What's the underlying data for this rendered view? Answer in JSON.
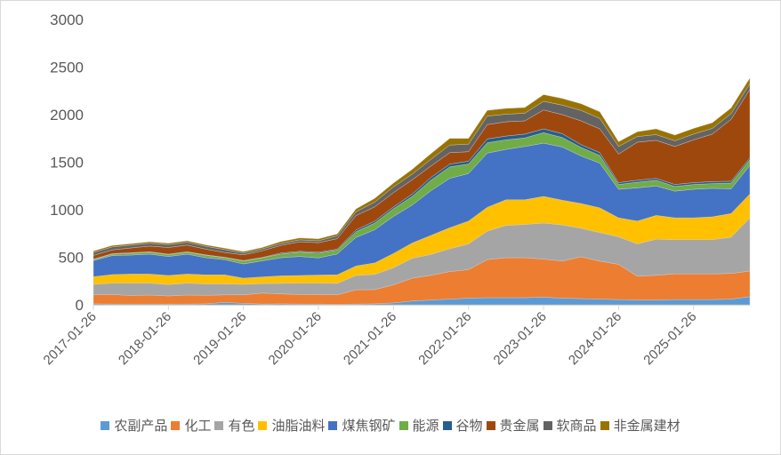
{
  "chart_data": {
    "type": "area",
    "stacked": true,
    "title": "",
    "xlabel": "",
    "ylabel": "",
    "ylim": [
      0,
      3000
    ],
    "yticks": [
      0,
      500,
      1000,
      1500,
      2000,
      2500,
      3000
    ],
    "xtick_labels": [
      "2017-01-26",
      "2018-01-26",
      "2019-01-26",
      "2020-01-26",
      "2021-01-26",
      "2022-01-26",
      "2023-01-26",
      "2024-01-26",
      "2025-01-26"
    ],
    "legend_position": "bottom",
    "grid": false,
    "x": [
      "2017-01",
      "2017-04",
      "2017-07",
      "2017-10",
      "2018-01",
      "2018-04",
      "2018-07",
      "2018-10",
      "2019-01",
      "2019-04",
      "2019-07",
      "2019-10",
      "2020-01",
      "2020-04",
      "2020-07",
      "2020-10",
      "2021-01",
      "2021-04",
      "2021-07",
      "2021-10",
      "2022-01",
      "2022-04",
      "2022-07",
      "2022-10",
      "2023-01",
      "2023-04",
      "2023-07",
      "2023-10",
      "2024-01",
      "2024-04",
      "2024-07",
      "2024-10",
      "2025-01",
      "2025-04",
      "2025-07",
      "2025-10"
    ],
    "series": [
      {
        "name": "农副产品",
        "color": "#5B9BD5",
        "values": [
          10,
          8,
          8,
          8,
          8,
          8,
          10,
          25,
          15,
          8,
          10,
          8,
          8,
          5,
          8,
          10,
          20,
          40,
          50,
          60,
          70,
          75,
          75,
          75,
          80,
          70,
          65,
          60,
          55,
          50,
          50,
          55,
          55,
          55,
          60,
          85
        ]
      },
      {
        "name": "化工",
        "color": "#ED7D31",
        "values": [
          95,
          100,
          90,
          95,
          85,
          95,
          90,
          80,
          90,
          115,
          105,
          100,
          100,
          100,
          150,
          150,
          190,
          240,
          260,
          290,
          300,
          400,
          420,
          420,
          400,
          390,
          440,
          400,
          370,
          250,
          260,
          270,
          270,
          270,
          270,
          270
        ]
      },
      {
        "name": "有色",
        "color": "#A5A5A5",
        "values": [
          110,
          120,
          130,
          125,
          120,
          125,
          120,
          115,
          110,
          100,
          110,
          120,
          120,
          120,
          150,
          160,
          180,
          210,
          220,
          240,
          270,
          300,
          340,
          350,
          380,
          380,
          300,
          300,
          290,
          340,
          380,
          360,
          360,
          360,
          380,
          560
        ]
      },
      {
        "name": "油脂油料",
        "color": "#FFC000",
        "values": [
          80,
          90,
          95,
          95,
          95,
          95,
          95,
          95,
          65,
          70,
          80,
          80,
          85,
          90,
          100,
          120,
          150,
          160,
          200,
          220,
          240,
          250,
          270,
          260,
          280,
          260,
          260,
          260,
          200,
          240,
          250,
          230,
          230,
          240,
          250,
          250
        ]
      },
      {
        "name": "煤焦钢矿",
        "color": "#4472C4",
        "values": [
          170,
          200,
          200,
          210,
          200,
          210,
          180,
          160,
          150,
          170,
          190,
          200,
          180,
          220,
          300,
          350,
          390,
          400,
          470,
          520,
          500,
          570,
          530,
          560,
          560,
          560,
          500,
          470,
          300,
          350,
          310,
          280,
          300,
          300,
          260,
          300
        ]
      },
      {
        "name": "能源",
        "color": "#70AD47",
        "values": [
          10,
          15,
          20,
          20,
          20,
          20,
          25,
          20,
          30,
          30,
          40,
          45,
          50,
          40,
          60,
          70,
          80,
          90,
          110,
          120,
          100,
          110,
          100,
          90,
          110,
          100,
          90,
          80,
          50,
          60,
          60,
          50,
          50,
          50,
          60,
          60
        ]
      },
      {
        "name": "谷物",
        "color": "#255E91",
        "values": [
          5,
          5,
          5,
          5,
          5,
          5,
          5,
          5,
          5,
          5,
          10,
          10,
          10,
          10,
          20,
          20,
          20,
          25,
          30,
          30,
          30,
          40,
          40,
          40,
          40,
          40,
          30,
          30,
          20,
          20,
          20,
          20,
          20,
          20,
          20,
          20
        ]
      },
      {
        "name": "贵金属",
        "color": "#9E480E",
        "values": [
          40,
          40,
          50,
          60,
          70,
          70,
          60,
          50,
          60,
          70,
          80,
          100,
          100,
          110,
          150,
          150,
          150,
          150,
          120,
          120,
          100,
          150,
          150,
          140,
          200,
          200,
          250,
          250,
          300,
          400,
          400,
          400,
          450,
          500,
          650,
          720
        ]
      },
      {
        "name": "软商品",
        "color": "#636363",
        "values": [
          30,
          30,
          30,
          30,
          30,
          30,
          30,
          30,
          20,
          20,
          20,
          20,
          20,
          30,
          40,
          50,
          60,
          60,
          70,
          80,
          80,
          90,
          80,
          80,
          90,
          100,
          110,
          110,
          80,
          60,
          60,
          60,
          60,
          60,
          60,
          60
        ]
      },
      {
        "name": "非金属建材",
        "color": "#997300",
        "values": [
          15,
          15,
          15,
          15,
          15,
          15,
          15,
          15,
          15,
          15,
          20,
          20,
          20,
          20,
          30,
          40,
          40,
          50,
          60,
          70,
          60,
          60,
          60,
          60,
          70,
          70,
          70,
          70,
          50,
          50,
          60,
          60,
          60,
          60,
          60,
          60
        ]
      }
    ]
  }
}
